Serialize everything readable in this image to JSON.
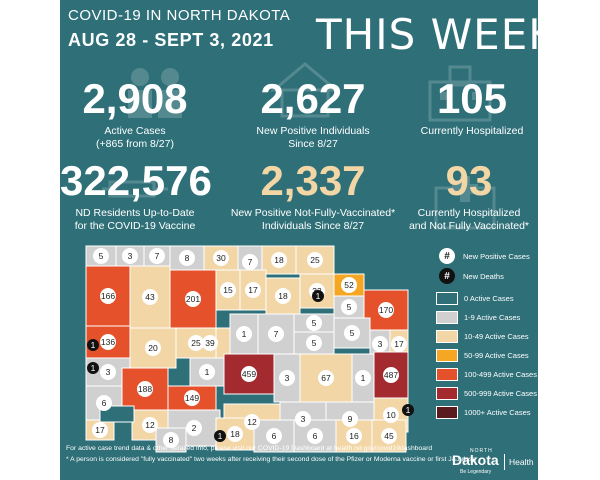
{
  "header": {
    "title": "COVID-19 IN NORTH DAKOTA",
    "dates": "AUG 28 - SEPT 3, 2021",
    "this_week": "THIS WEEK"
  },
  "stats": {
    "active_cases": {
      "value": "2,908",
      "label_line1": "Active Cases",
      "label_line2": "(+865 from 8/27)"
    },
    "new_positive": {
      "value": "2,627",
      "label_line1": "New Positive Individuals",
      "label_line2": "Since 8/27"
    },
    "hospitalized": {
      "value": "105",
      "label_line1": "Currently Hospitalized"
    },
    "vaccinated": {
      "value": "322,576",
      "label_line1": "ND Residents Up-to-Date",
      "label_line2": "for the COVID-19 Vaccine"
    },
    "new_positive_unvax": {
      "value": "2,337",
      "label_line1": "New Positive Not-Fully-Vaccinated*",
      "label_line2": "Individuals Since 8/27"
    },
    "hospitalized_unvax": {
      "value": "93",
      "label_line1": "Currently Hospitalized",
      "label_line2": "and Not Fully Vaccinated*"
    }
  },
  "colors": {
    "background": "#2e6f78",
    "tan": "#f2d6a5",
    "zero": "#2e6f78",
    "c1_9": "#d0d0d0",
    "c10_49": "#f2d6a5",
    "c50_99": "#f5a623",
    "c100_499": "#e4512b",
    "c500_999": "#a32a2f",
    "c1000": "#5a1a1e"
  },
  "map": {
    "counties": [
      {
        "label": "5",
        "cat": "c1_9"
      },
      {
        "label": "3",
        "cat": "c1_9"
      },
      {
        "label": "7",
        "cat": "c1_9"
      },
      {
        "label": "8",
        "cat": "c1_9"
      },
      {
        "label": "30",
        "cat": "c10_49"
      },
      {
        "label": "7",
        "cat": "c1_9"
      },
      {
        "label": "18",
        "cat": "c10_49"
      },
      {
        "label": "25",
        "cat": "c10_49"
      },
      {
        "label": "166",
        "cat": "c100_499"
      },
      {
        "label": "43",
        "cat": "c10_49"
      },
      {
        "label": "201",
        "cat": "c100_499"
      },
      {
        "label": "15",
        "cat": "c10_49"
      },
      {
        "label": "17",
        "cat": "c10_49"
      },
      {
        "label": "18",
        "cat": "c10_49"
      },
      {
        "label": "33",
        "cat": "c10_49"
      },
      {
        "label": "52",
        "cat": "c50_99"
      },
      {
        "label": "136",
        "cat": "c100_499"
      },
      {
        "label": "5",
        "cat": "c1_9"
      },
      {
        "label": "170",
        "cat": "c100_499"
      },
      {
        "label": "39",
        "cat": "c10_49"
      },
      {
        "label": "1",
        "cat": "c1_9"
      },
      {
        "label": "7",
        "cat": "c1_9"
      },
      {
        "label": "5",
        "cat": "c1_9"
      },
      {
        "label": "5",
        "cat": "c1_9"
      },
      {
        "label": "5",
        "cat": "c1_9"
      },
      {
        "label": "3",
        "cat": "c1_9"
      },
      {
        "label": "17",
        "cat": "c10_49"
      },
      {
        "label": "20",
        "cat": "c10_49"
      },
      {
        "label": "25",
        "cat": "c10_49"
      },
      {
        "label": "3",
        "cat": "c1_9"
      },
      {
        "label": "1",
        "cat": "c1_9"
      },
      {
        "label": "459",
        "cat": "c500_999"
      },
      {
        "label": "3",
        "cat": "c1_9"
      },
      {
        "label": "67",
        "cat": "c10_49"
      },
      {
        "label": "1",
        "cat": "c1_9"
      },
      {
        "label": "487",
        "cat": "c500_999"
      },
      {
        "label": "6",
        "cat": "c1_9"
      },
      {
        "label": "188",
        "cat": "c100_499"
      },
      {
        "label": "149",
        "cat": "c100_499"
      },
      {
        "label": "12",
        "cat": "c10_49"
      },
      {
        "label": "2",
        "cat": "c1_9"
      },
      {
        "label": "12",
        "cat": "c10_49"
      },
      {
        "label": "3",
        "cat": "c1_9"
      },
      {
        "label": "9",
        "cat": "c1_9"
      },
      {
        "label": "10",
        "cat": "c10_49"
      },
      {
        "label": "17",
        "cat": "c10_49"
      },
      {
        "label": "8",
        "cat": "c1_9"
      },
      {
        "label": "18",
        "cat": "c10_49"
      },
      {
        "label": "6",
        "cat": "c1_9"
      },
      {
        "label": "6",
        "cat": "c1_9"
      },
      {
        "label": "16",
        "cat": "c10_49"
      },
      {
        "label": "45",
        "cat": "c10_49"
      },
      {
        "label": "",
        "cat": "zero"
      }
    ],
    "deaths": [
      "1",
      "1",
      "1",
      "1",
      "1"
    ]
  },
  "legend": {
    "positive_symbol": "#",
    "positive_label": "New Positive Cases",
    "deaths_symbol": "#",
    "deaths_label": "New Deaths",
    "items": [
      {
        "label": "0 Active Cases",
        "cat": "zero"
      },
      {
        "label": "1-9 Active Cases",
        "cat": "c1_9"
      },
      {
        "label": "10-49 Active Cases",
        "cat": "c10_49"
      },
      {
        "label": "50-99 Active Cases",
        "cat": "c50_99"
      },
      {
        "label": "100-499 Active Cases",
        "cat": "c100_499"
      },
      {
        "label": "500-999 Active Cases",
        "cat": "c500_999"
      },
      {
        "label": "1000+ Active Cases",
        "cat": "c1000"
      }
    ]
  },
  "footer": {
    "line1": "For active case trend data & other detailed info, please visit our COVID-19 Dashboard at health.nd.gov/covid19dashboard",
    "line2": "* A person is considered \"fully vaccinated\" two weeks after receiving their second dose of the Pfizer or Moderna vaccine or first J&J dose"
  },
  "logo": {
    "north": "NORTH",
    "state": "Dakota",
    "tagline": "Be Legendary",
    "dept": "Health"
  }
}
